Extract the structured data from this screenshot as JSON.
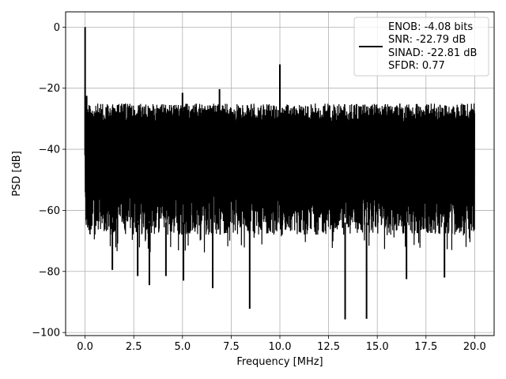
{
  "chart_data": {
    "type": "line",
    "xlabel": "Frequency [MHz]",
    "ylabel": "PSD [dB]",
    "xlim": [
      -1,
      21
    ],
    "ylim": [
      -101,
      5
    ],
    "grid": true,
    "x_ticks": [
      0.0,
      2.5,
      5.0,
      7.5,
      10.0,
      12.5,
      15.0,
      17.5,
      20.0
    ],
    "x_tick_labels": [
      "0.0",
      "2.5",
      "5.0",
      "7.5",
      "10.0",
      "12.5",
      "15.0",
      "17.5",
      "20.0"
    ],
    "y_ticks": [
      0,
      -20,
      -40,
      -60,
      -80,
      -100
    ],
    "y_tick_labels": [
      "0",
      "−20",
      "−40",
      "−60",
      "−80",
      "−100"
    ],
    "series": [
      {
        "color": "#000000",
        "noise_floor_mean": -42,
        "noise_top": -25,
        "noise_bottom": -68,
        "spikes": [
          {
            "x": 0.0,
            "y": 0.0
          },
          {
            "x": 0.08,
            "y": -22.5
          },
          {
            "x": 5.0,
            "y": -21.5
          },
          {
            "x": 6.9,
            "y": -20.3
          },
          {
            "x": 10.0,
            "y": -12.2
          }
        ],
        "dips": [
          {
            "x": 1.4,
            "y": -79.5
          },
          {
            "x": 2.7,
            "y": -81.5
          },
          {
            "x": 3.3,
            "y": -84.5
          },
          {
            "x": 4.15,
            "y": -81.5
          },
          {
            "x": 5.05,
            "y": -83.0
          },
          {
            "x": 6.55,
            "y": -85.5
          },
          {
            "x": 8.45,
            "y": -92.2
          },
          {
            "x": 13.35,
            "y": -95.7
          },
          {
            "x": 14.45,
            "y": -95.5
          },
          {
            "x": 16.5,
            "y": -82.5
          },
          {
            "x": 18.45,
            "y": -82.0
          }
        ]
      }
    ],
    "legend": {
      "position": "top-right",
      "entries": [
        "ENOB: -4.08 bits",
        "SNR: -22.79 dB",
        "SINAD: -22.81 dB",
        "SFDR: 0.77"
      ]
    }
  }
}
